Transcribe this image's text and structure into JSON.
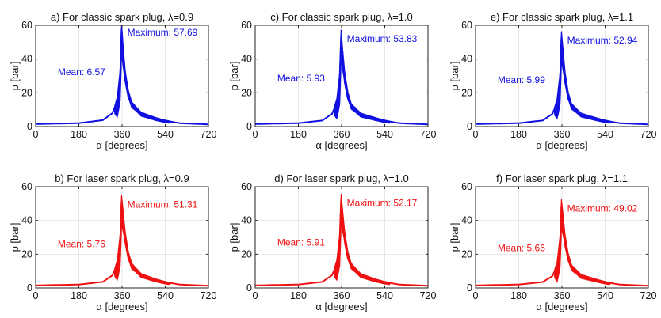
{
  "chart_data": [
    {
      "type": "line",
      "title": "a) For classic spark plug, λ=0.9",
      "xlabel": "α [degrees]",
      "ylabel": "p [bar]",
      "xlim": [
        0,
        720
      ],
      "ylim": [
        0,
        60
      ],
      "xticks": [
        "0",
        "180",
        "360",
        "540",
        "720"
      ],
      "yticks": [
        "0",
        "20",
        "40",
        "60"
      ],
      "color": "#1010e0",
      "series": [
        {
          "x": [
            0,
            180,
            280,
            320,
            340,
            352,
            358,
            364,
            372,
            385,
            400,
            440,
            500,
            540,
            600,
            720
          ],
          "y": [
            1.5,
            2,
            3.8,
            8,
            15,
            30,
            57.69,
            46,
            33,
            21,
            14,
            8,
            5,
            3.5,
            2,
            1.3
          ]
        }
      ],
      "band": [
        4,
        12,
        16,
        6,
        3,
        2,
        1.5,
        1
      ],
      "annotations": {
        "max": "Maximum: 57.69",
        "mean": "Mean: 6.57"
      }
    },
    {
      "type": "line",
      "title": "c) For classic spark plug, λ=1.0",
      "xlabel": "α [degrees]",
      "ylabel": "p [bar]",
      "xlim": [
        0,
        720
      ],
      "ylim": [
        0,
        60
      ],
      "xticks": [
        "0",
        "180",
        "360",
        "540",
        "720"
      ],
      "yticks": [
        "0",
        "20",
        "40",
        "60"
      ],
      "color": "#1010e0",
      "series": [
        {
          "x": [
            0,
            180,
            280,
            320,
            340,
            352,
            358,
            364,
            372,
            385,
            400,
            440,
            500,
            540,
            600,
            720
          ],
          "y": [
            1.5,
            2,
            3.6,
            7.5,
            14,
            28,
            53.83,
            44,
            32,
            20,
            13,
            7.5,
            5,
            3.5,
            2,
            1.3
          ]
        }
      ],
      "band": [
        4,
        12,
        16,
        6,
        3,
        2,
        1.5,
        1
      ],
      "annotations": {
        "max": "Maximum: 53.83",
        "mean": "Mean: 5.93"
      }
    },
    {
      "type": "line",
      "title": "e) For classic spark plug, λ=1.1",
      "xlabel": "α [degrees]",
      "ylabel": "p [bar]",
      "xlim": [
        0,
        720
      ],
      "ylim": [
        0,
        60
      ],
      "xticks": [
        "0",
        "180",
        "360",
        "540",
        "720"
      ],
      "yticks": [
        "0",
        "20",
        "40",
        "60"
      ],
      "color": "#1010e0",
      "series": [
        {
          "x": [
            0,
            180,
            280,
            320,
            340,
            352,
            358,
            364,
            372,
            385,
            400,
            440,
            500,
            540,
            600,
            720
          ],
          "y": [
            1.5,
            2,
            3.6,
            7.5,
            14,
            28,
            52.94,
            44,
            32,
            20,
            13,
            7.5,
            5,
            3.5,
            2,
            1.3
          ]
        }
      ],
      "band": [
        4,
        12,
        16,
        6,
        3,
        2,
        1.5,
        1
      ],
      "annotations": {
        "max": "Maximum: 52.94",
        "mean": "Mean: 5.99"
      }
    },
    {
      "type": "line",
      "title": "b) For laser spark plug, λ=0.9",
      "xlabel": "α [degrees]",
      "ylabel": "p [bar]",
      "xlim": [
        0,
        720
      ],
      "ylim": [
        0,
        60
      ],
      "xticks": [
        "0",
        "180",
        "360",
        "540",
        "720"
      ],
      "yticks": [
        "0",
        "20",
        "40",
        "60"
      ],
      "color": "#ee1111",
      "series": [
        {
          "x": [
            0,
            180,
            280,
            320,
            340,
            352,
            358,
            364,
            372,
            385,
            400,
            440,
            500,
            540,
            600,
            720
          ],
          "y": [
            1.5,
            2,
            3.6,
            7.5,
            14,
            28,
            51.31,
            44,
            33,
            21,
            14,
            8,
            5,
            3.5,
            2,
            1.3
          ]
        }
      ],
      "band": [
        4,
        12,
        16,
        6,
        3,
        2,
        1.5,
        1
      ],
      "annotations": {
        "max": "Maximum: 51.31",
        "mean": "Mean: 5.76"
      }
    },
    {
      "type": "line",
      "title": "d) For laser spark plug, λ=1.0",
      "xlabel": "α [degrees]",
      "ylabel": "p [bar]",
      "xlim": [
        0,
        720
      ],
      "ylim": [
        0,
        60
      ],
      "xticks": [
        "0",
        "180",
        "360",
        "540",
        "720"
      ],
      "yticks": [
        "0",
        "20",
        "40",
        "60"
      ],
      "color": "#ee1111",
      "series": [
        {
          "x": [
            0,
            180,
            280,
            320,
            340,
            352,
            358,
            364,
            372,
            385,
            400,
            440,
            500,
            540,
            600,
            720
          ],
          "y": [
            1.5,
            2,
            3.6,
            7.5,
            14,
            28,
            52.17,
            44,
            33,
            21,
            14,
            8,
            5,
            3.5,
            2,
            1.3
          ]
        }
      ],
      "band": [
        4,
        12,
        16,
        6,
        3,
        2,
        1.5,
        1
      ],
      "annotations": {
        "max": "Maximum: 52.17",
        "mean": "Mean: 5.91"
      }
    },
    {
      "type": "line",
      "title": "f) For laser spark plug, λ=1.1",
      "xlabel": "α [degrees]",
      "ylabel": "p [bar]",
      "xlim": [
        0,
        720
      ],
      "ylim": [
        0,
        60
      ],
      "xticks": [
        "0",
        "180",
        "360",
        "540",
        "720"
      ],
      "yticks": [
        "0",
        "20",
        "40",
        "60"
      ],
      "color": "#ee1111",
      "series": [
        {
          "x": [
            0,
            180,
            280,
            320,
            340,
            352,
            358,
            364,
            372,
            385,
            400,
            440,
            500,
            540,
            600,
            720
          ],
          "y": [
            1.5,
            2,
            3.5,
            7,
            13,
            27,
            49.02,
            42,
            31,
            20,
            13,
            7.5,
            5,
            3.5,
            2,
            1.3
          ]
        }
      ],
      "band": [
        4,
        12,
        16,
        6,
        3,
        2,
        1.5,
        1
      ],
      "annotations": {
        "max": "Maximum: 49.02",
        "mean": "Mean: 5.66"
      }
    }
  ]
}
